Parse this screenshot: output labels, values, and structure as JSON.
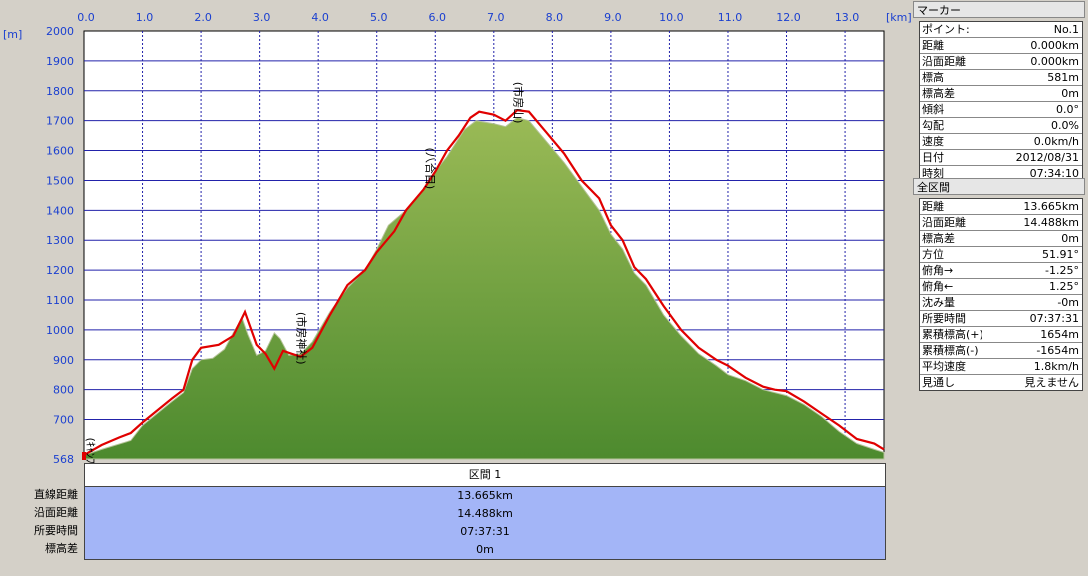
{
  "chart_data": {
    "type": "area",
    "x_unit": "[km]",
    "y_unit": "[m]",
    "xlim": [
      0,
      13.665
    ],
    "ylim": [
      568,
      2000
    ],
    "x_ticks": [
      "0.0",
      "1.0",
      "2.0",
      "3.0",
      "4.0",
      "5.0",
      "6.0",
      "7.0",
      "8.0",
      "9.0",
      "10.0",
      "11.0",
      "12.0",
      "13.0"
    ],
    "y_ticks": [
      "2000",
      "1900",
      "1800",
      "1700",
      "1600",
      "1500",
      "1400",
      "1300",
      "1200",
      "1100",
      "1000",
      "900",
      "800",
      "700",
      "568"
    ],
    "series": [
      {
        "values": [
          [
            0.0,
            581
          ],
          [
            0.3,
            600
          ],
          [
            0.8,
            630
          ],
          [
            1.0,
            680
          ],
          [
            1.5,
            760
          ],
          [
            1.7,
            790
          ],
          [
            1.85,
            870
          ],
          [
            2.0,
            900
          ],
          [
            2.2,
            905
          ],
          [
            2.4,
            935
          ],
          [
            2.55,
            990
          ],
          [
            2.7,
            1040
          ],
          [
            2.8,
            985
          ],
          [
            2.95,
            915
          ],
          [
            3.1,
            930
          ],
          [
            3.25,
            990
          ],
          [
            3.35,
            970
          ],
          [
            3.5,
            915
          ],
          [
            3.7,
            920
          ],
          [
            3.9,
            960
          ],
          [
            4.2,
            1060
          ],
          [
            4.5,
            1140
          ],
          [
            4.8,
            1200
          ],
          [
            5.0,
            1270
          ],
          [
            5.2,
            1350
          ],
          [
            5.5,
            1400
          ],
          [
            5.8,
            1470
          ],
          [
            6.0,
            1530
          ],
          [
            6.2,
            1580
          ],
          [
            6.5,
            1670
          ],
          [
            6.7,
            1700
          ],
          [
            7.0,
            1690
          ],
          [
            7.2,
            1680
          ],
          [
            7.4,
            1710
          ],
          [
            7.6,
            1700
          ],
          [
            7.9,
            1630
          ],
          [
            8.2,
            1560
          ],
          [
            8.5,
            1480
          ],
          [
            8.8,
            1400
          ],
          [
            9.0,
            1320
          ],
          [
            9.2,
            1270
          ],
          [
            9.4,
            1190
          ],
          [
            9.6,
            1150
          ],
          [
            9.9,
            1050
          ],
          [
            10.2,
            980
          ],
          [
            10.5,
            920
          ],
          [
            10.8,
            880
          ],
          [
            11.0,
            850
          ],
          [
            11.3,
            830
          ],
          [
            11.6,
            800
          ],
          [
            11.8,
            790
          ],
          [
            12.0,
            780
          ],
          [
            12.3,
            750
          ],
          [
            12.6,
            710
          ],
          [
            12.9,
            660
          ],
          [
            13.2,
            620
          ],
          [
            13.5,
            600
          ],
          [
            13.665,
            590
          ]
        ]
      },
      {
        "values": [
          [
            0.0,
            581
          ],
          [
            0.3,
            615
          ],
          [
            0.6,
            640
          ],
          [
            0.8,
            655
          ],
          [
            1.0,
            690
          ],
          [
            1.5,
            770
          ],
          [
            1.7,
            800
          ],
          [
            1.85,
            900
          ],
          [
            2.0,
            940
          ],
          [
            2.3,
            950
          ],
          [
            2.55,
            980
          ],
          [
            2.75,
            1060
          ],
          [
            2.95,
            950
          ],
          [
            3.1,
            920
          ],
          [
            3.25,
            870
          ],
          [
            3.4,
            930
          ],
          [
            3.7,
            910
          ],
          [
            3.9,
            940
          ],
          [
            4.2,
            1050
          ],
          [
            4.5,
            1150
          ],
          [
            4.8,
            1200
          ],
          [
            5.0,
            1260
          ],
          [
            5.3,
            1330
          ],
          [
            5.5,
            1400
          ],
          [
            5.8,
            1470
          ],
          [
            6.0,
            1530
          ],
          [
            6.2,
            1600
          ],
          [
            6.4,
            1650
          ],
          [
            6.6,
            1710
          ],
          [
            6.75,
            1730
          ],
          [
            7.0,
            1720
          ],
          [
            7.2,
            1700
          ],
          [
            7.4,
            1735
          ],
          [
            7.6,
            1730
          ],
          [
            7.9,
            1660
          ],
          [
            8.2,
            1590
          ],
          [
            8.5,
            1500
          ],
          [
            8.8,
            1440
          ],
          [
            9.0,
            1350
          ],
          [
            9.2,
            1300
          ],
          [
            9.4,
            1210
          ],
          [
            9.6,
            1170
          ],
          [
            9.9,
            1080
          ],
          [
            10.2,
            1000
          ],
          [
            10.5,
            940
          ],
          [
            10.8,
            900
          ],
          [
            11.0,
            880
          ],
          [
            11.3,
            840
          ],
          [
            11.6,
            810
          ],
          [
            11.8,
            800
          ],
          [
            12.0,
            795
          ],
          [
            12.3,
            760
          ],
          [
            12.6,
            720
          ],
          [
            12.9,
            680
          ],
          [
            13.2,
            635
          ],
          [
            13.5,
            620
          ],
          [
            13.665,
            600
          ]
        ]
      }
    ],
    "annotations": [
      {
        "x": 0.05,
        "y": 640,
        "text": "(ｷｬﾝﾌﾟ場)"
      },
      {
        "x": 3.65,
        "y": 1060,
        "text": "(市房神社)"
      },
      {
        "x": 5.85,
        "y": 1610,
        "text": "(八合目)"
      },
      {
        "x": 7.35,
        "y": 1830,
        "text": "(市房山)"
      }
    ],
    "grid": true,
    "colors": {
      "area_top": "#9aba56",
      "area_bottom": "#4d8a2e",
      "line": "#e00000",
      "plot_bg": "#ffffff",
      "grid": "#2222aa",
      "axis_text": "#1a3fd0"
    }
  },
  "section": {
    "header": "区間 1",
    "rows": [
      {
        "label": "直線距離",
        "value": "13.665km"
      },
      {
        "label": "沿面距離",
        "value": "14.488km"
      },
      {
        "label": "所要時間",
        "value": "07:37:31"
      },
      {
        "label": "標高差",
        "value": "0m"
      }
    ]
  },
  "marker_panel": {
    "title": "マーカー",
    "rows": [
      {
        "k": "ポイント:",
        "v": "No.1"
      },
      {
        "k": "距離",
        "v": "0.000km"
      },
      {
        "k": "沿面距離",
        "v": "0.000km"
      },
      {
        "k": "標高",
        "v": "581m"
      },
      {
        "k": "標高差",
        "v": "0m"
      },
      {
        "k": "傾斜",
        "v": "0.0°"
      },
      {
        "k": "勾配",
        "v": "0.0%"
      },
      {
        "k": "速度",
        "v": "0.0km/h"
      },
      {
        "k": "日付",
        "v": "2012/08/31"
      },
      {
        "k": "時刻",
        "v": "07:34:10"
      }
    ]
  },
  "total_panel": {
    "title": "全区間",
    "rows": [
      {
        "k": "距離",
        "v": "13.665km"
      },
      {
        "k": "沿面距離",
        "v": "14.488km"
      },
      {
        "k": "標高差",
        "v": "0m"
      },
      {
        "k": "方位",
        "v": "51.91°"
      },
      {
        "k": "俯角→",
        "v": "-1.25°"
      },
      {
        "k": "俯角←",
        "v": "1.25°"
      },
      {
        "k": "沈み量",
        "v": "-0m"
      },
      {
        "k": "所要時間",
        "v": "07:37:31"
      },
      {
        "k": "累積標高(+)",
        "v": "1654m"
      },
      {
        "k": "累積標高(-)",
        "v": "-1654m"
      },
      {
        "k": "平均速度",
        "v": "1.8km/h"
      },
      {
        "k": "見通し",
        "v": "見えません"
      }
    ]
  }
}
